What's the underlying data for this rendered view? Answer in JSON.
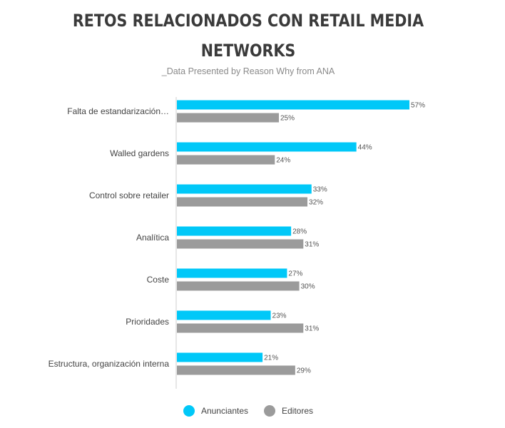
{
  "chart_data": {
    "type": "bar",
    "orientation": "horizontal",
    "title": "RETOS RELACIONADOS CON RETAIL MEDIA NETWORKS",
    "subtitle": "_Data Presented by Reason Why from ANA",
    "categories": [
      "Falta de estandarización…",
      "Walled gardens",
      "Control sobre retailer",
      "Analítica",
      "Coste",
      "Prioridades",
      "Estructura, organización interna"
    ],
    "series": [
      {
        "name": "Anunciantes",
        "color": "#00c8f8",
        "values": [
          57,
          44,
          33,
          28,
          27,
          23,
          21
        ],
        "labels": [
          "57%",
          "44%",
          "33%",
          "28%",
          "27%",
          "23%",
          "21%"
        ]
      },
      {
        "name": "Editores",
        "color": "#9b9b9b",
        "values": [
          25,
          24,
          32,
          31,
          30,
          31,
          29
        ],
        "labels": [
          "25%",
          "24%",
          "32%",
          "31%",
          "30%",
          "31%",
          "29%"
        ]
      }
    ],
    "value_unit": "%",
    "xlim": [
      0,
      60
    ],
    "grid": false,
    "legend_position": "bottom"
  }
}
